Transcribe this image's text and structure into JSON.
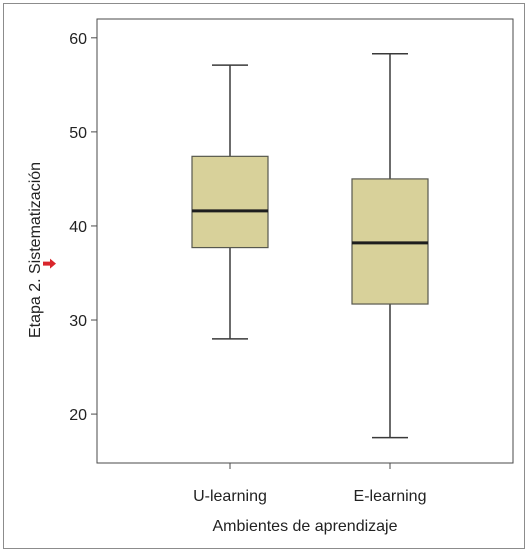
{
  "chart_data": {
    "type": "boxplot",
    "title": "",
    "xlabel": "Ambientes de aprendizaje",
    "ylabel": "Etapa 2. Sistematización",
    "categories": [
      "U-learning",
      "E-learning"
    ],
    "boxes": [
      {
        "category": "U-learning",
        "whisker_low": 28,
        "q1": 37.7,
        "median": 41.6,
        "q3": 47.4,
        "whisker_high": 57.1
      },
      {
        "category": "E-learning",
        "whisker_low": 17.5,
        "q1": 31.7,
        "median": 38.2,
        "q3": 45.0,
        "whisker_high": 58.3
      }
    ],
    "y_ticks": [
      20,
      30,
      40,
      50,
      60
    ],
    "ylim": [
      14.8,
      62
    ],
    "grid": false,
    "legend": "none",
    "annotations": [
      {
        "type": "marker",
        "shape": "arrow",
        "y": 36,
        "color": "#d9262c"
      }
    ],
    "colors": {
      "box_fill": "#d8d19a",
      "box_stroke": "#57584e",
      "median": "#1e1e1e",
      "whisker": "#3a3a3a",
      "marker": "#d9262c"
    }
  }
}
